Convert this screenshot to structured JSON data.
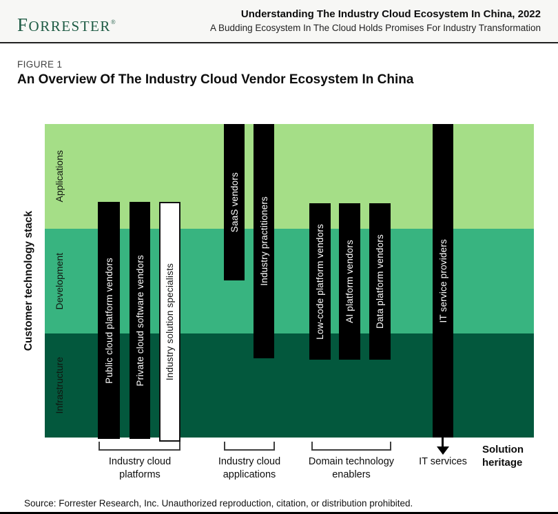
{
  "header": {
    "logo_initial": "F",
    "logo_rest": "ORRESTER",
    "registered": "®",
    "title": "Understanding The Industry Cloud Ecosystem In China, 2022",
    "subtitle": "A Budding Ecosystem In The Cloud Holds Promises For Industry Transformation"
  },
  "figure": {
    "label": "FIGURE 1",
    "title": "An Overview Of The Industry Cloud Vendor Ecosystem In China"
  },
  "diagram": {
    "y_axis_label": "Customer technology stack",
    "layers": [
      {
        "label": "Applications",
        "color": "#a5de87"
      },
      {
        "label": "Development",
        "color": "#38b480"
      },
      {
        "label": "Infrastructure",
        "color": "#03583d"
      }
    ],
    "vendors": [
      {
        "label": "Public cloud platform vendors",
        "group": "Industry cloud platforms",
        "variant": "black"
      },
      {
        "label": "Private cloud software vendors",
        "group": "Industry cloud platforms",
        "variant": "black"
      },
      {
        "label": "Industry solution specialists",
        "group": "Industry cloud platforms",
        "variant": "white"
      },
      {
        "label": "SaaS vendors",
        "group": "Industry cloud applications",
        "variant": "black"
      },
      {
        "label": "Industry practitioners",
        "group": "Industry cloud applications",
        "variant": "black"
      },
      {
        "label": "Low-code platform vendors",
        "group": "Domain technology enablers",
        "variant": "black"
      },
      {
        "label": "AI platform vendors",
        "group": "Domain technology enablers",
        "variant": "black"
      },
      {
        "label": "Data platform vendors",
        "group": "Domain technology enablers",
        "variant": "black"
      },
      {
        "label": "IT service providers",
        "group": "IT services",
        "variant": "black"
      }
    ],
    "groups": [
      {
        "lines": [
          "Industry cloud",
          "platforms"
        ]
      },
      {
        "lines": [
          "Industry cloud",
          "applications"
        ]
      },
      {
        "lines": [
          "Domain technology",
          "enablers"
        ]
      },
      {
        "lines": [
          "IT services"
        ]
      }
    ],
    "solution_heritage": {
      "lines": [
        "Solution",
        "heritage"
      ]
    }
  },
  "source": "Source: Forrester Research, Inc. Unauthorized reproduction, citation, or distribution prohibited.",
  "colors": {
    "logo_green": "#1e5b44",
    "bar_black": "#000000",
    "header_background": "#f7f7f5"
  }
}
